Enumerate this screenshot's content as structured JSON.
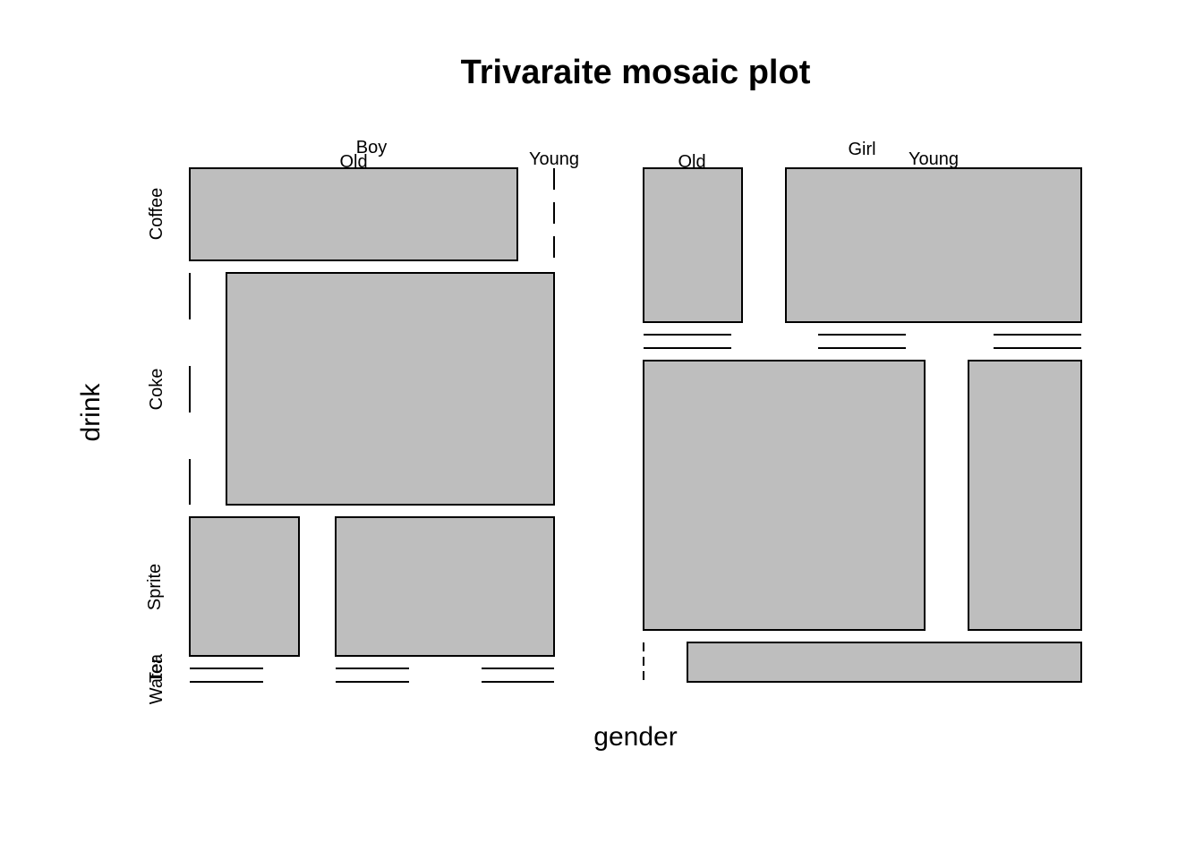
{
  "chart_data": {
    "type": "mosaic",
    "title": "Trivaraite mosaic plot",
    "xlabel": "gender",
    "ylabel": "drink",
    "gender_levels": [
      "Boy",
      "Girl"
    ],
    "age_levels": [
      "Old",
      "Young"
    ],
    "drink_levels": [
      "Coffee",
      "Coke",
      "Sprite",
      "Tea",
      "Water"
    ],
    "fill_color": "#bebebe",
    "gender_share": {
      "Boy": 0.45,
      "Girl": 0.55
    },
    "drink_share_by_gender": {
      "Boy": {
        "Coffee": 0.2,
        "Coke": 0.5,
        "Sprite": 0.3,
        "Tea": 0.0,
        "Water": 0.0
      },
      "Girl": {
        "Coffee": 0.33,
        "Coke": 0.58,
        "Sprite": 0.0,
        "Tea": 0.09,
        "Water": 0.0
      }
    },
    "age_share_within_gender_drink": {
      "Boy": {
        "Coffee": {
          "Old": 1.0,
          "Young": 0.0
        },
        "Coke": {
          "Old": 0.0,
          "Young": 1.0
        },
        "Sprite": {
          "Old": 0.33,
          "Young": 0.67
        },
        "Tea": {
          "Old": 0.0,
          "Young": 0.0
        },
        "Water": {
          "Old": 0.0,
          "Young": 0.0
        }
      },
      "Girl": {
        "Coffee": {
          "Old": 0.25,
          "Young": 0.75
        },
        "Coke": {
          "Old": 0.72,
          "Young": 0.28
        },
        "Sprite": {
          "Old": 0.0,
          "Young": 0.0
        },
        "Tea": {
          "Old": 0.0,
          "Young": 1.0
        },
        "Water": {
          "Old": 0.0,
          "Young": 0.0
        }
      }
    }
  }
}
